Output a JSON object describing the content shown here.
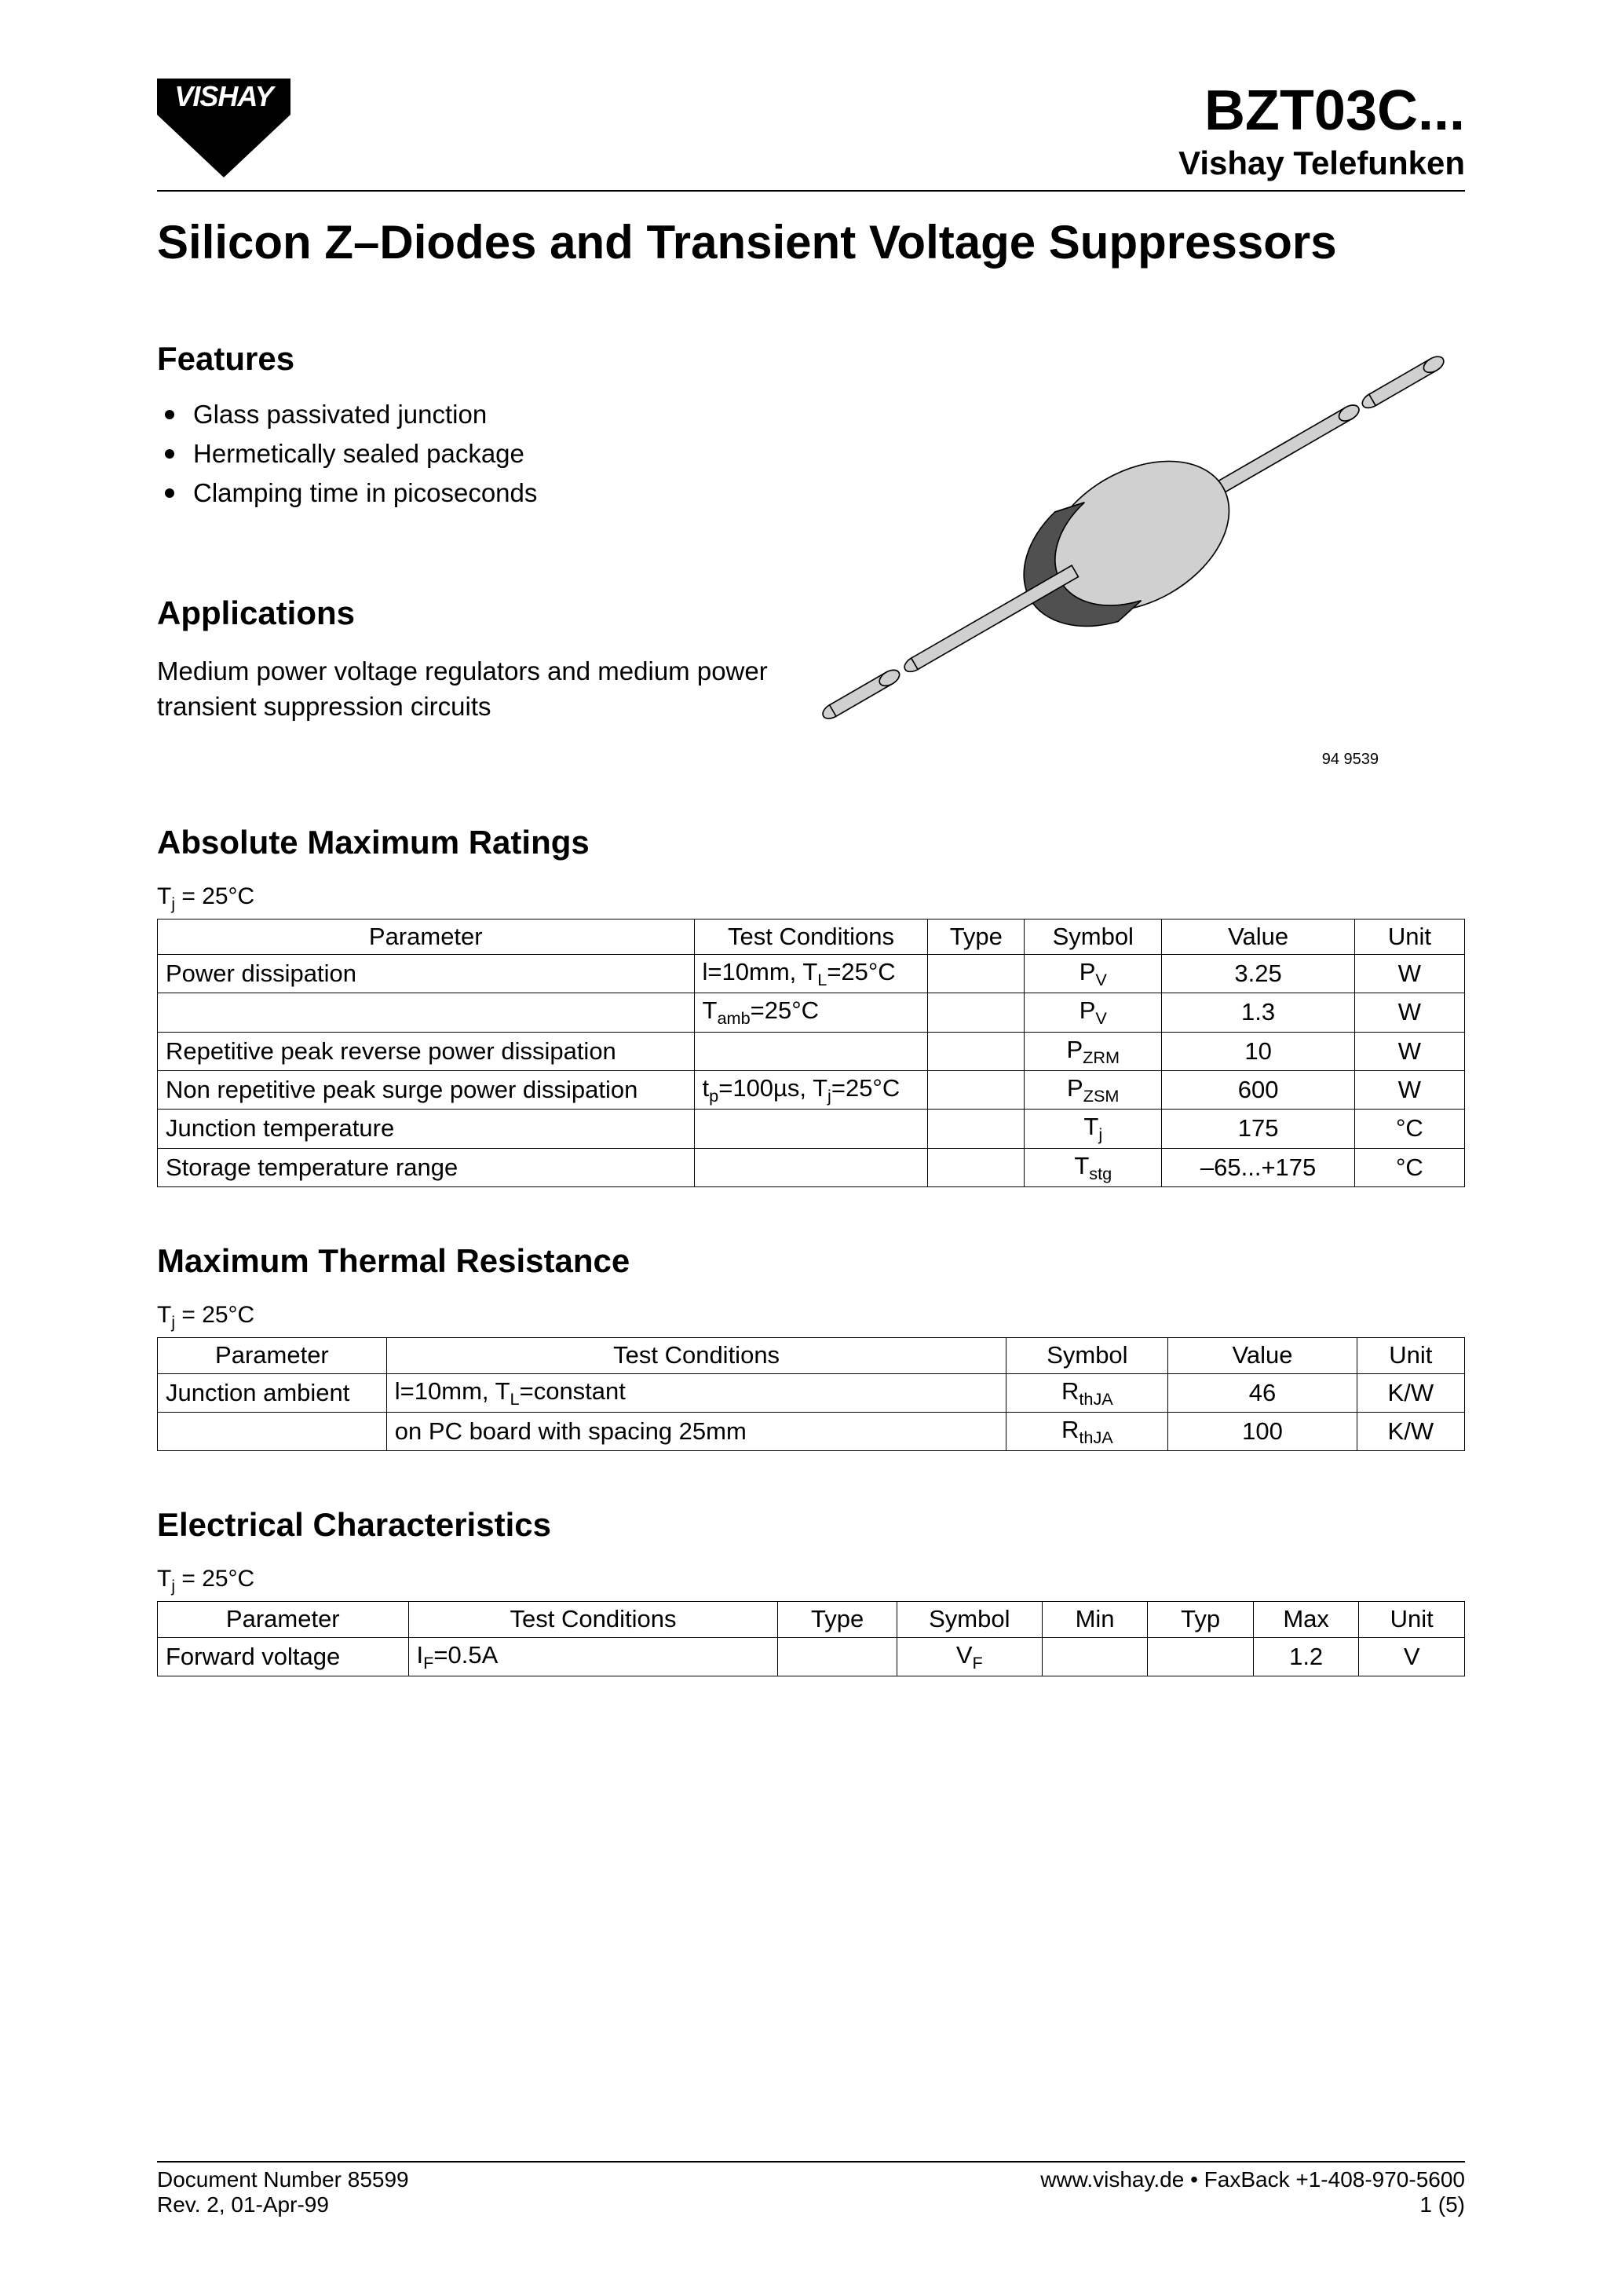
{
  "header": {
    "logo_text": "VISHAY",
    "part_number": "BZT03C...",
    "subtitle": "Vishay Telefunken"
  },
  "main_title": "Silicon Z–Diodes and Transient Voltage Suppressors",
  "features": {
    "heading": "Features",
    "items": [
      "Glass passivated junction",
      "Hermetically sealed package",
      "Clamping time in picoseconds"
    ]
  },
  "applications": {
    "heading": "Applications",
    "text": "Medium power voltage regulators and medium power transient suppression circuits"
  },
  "image_caption": "94 9539",
  "abs_max": {
    "heading": "Absolute Maximum Ratings",
    "condition": "Tj = 25°C",
    "columns": [
      "Parameter",
      "Test Conditions",
      "Type",
      "Symbol",
      "Value",
      "Unit"
    ],
    "col_widths": [
      "39%",
      "17%",
      "7%",
      "10%",
      "14%",
      "8%"
    ],
    "rows": [
      {
        "parameter": "Power dissipation",
        "test": "l=10mm, TL=25°C",
        "type": "",
        "symbol": "PV",
        "value": "3.25",
        "unit": "W"
      },
      {
        "parameter": "",
        "test": "Tamb=25°C",
        "type": "",
        "symbol": "PV",
        "value": "1.3",
        "unit": "W"
      },
      {
        "parameter": "Repetitive peak reverse power dissipation",
        "test": "",
        "type": "",
        "symbol": "PZRM",
        "value": "10",
        "unit": "W"
      },
      {
        "parameter": "Non repetitive peak surge power dissipation",
        "test": "tp=100µs, Tj=25°C",
        "type": "",
        "symbol": "PZSM",
        "value": "600",
        "unit": "W"
      },
      {
        "parameter": "Junction temperature",
        "test": "",
        "type": "",
        "symbol": "Tj",
        "value": "175",
        "unit": "°C"
      },
      {
        "parameter": "Storage temperature range",
        "test": "",
        "type": "",
        "symbol": "Tstg",
        "value": "–65...+175",
        "unit": "°C"
      }
    ]
  },
  "thermal": {
    "heading": "Maximum Thermal Resistance",
    "condition": "Tj = 25°C",
    "columns": [
      "Parameter",
      "Test Conditions",
      "Symbol",
      "Value",
      "Unit"
    ],
    "col_widths": [
      "17%",
      "46%",
      "12%",
      "14%",
      "8%"
    ],
    "rows": [
      {
        "parameter": "Junction ambient",
        "test": "l=10mm, TL=constant",
        "symbol": "RthJA",
        "value": "46",
        "unit": "K/W"
      },
      {
        "parameter": "",
        "test": "on PC board with spacing 25mm",
        "symbol": "RthJA",
        "value": "100",
        "unit": "K/W"
      }
    ]
  },
  "electrical": {
    "heading": "Electrical Characteristics",
    "condition": "Tj = 25°C",
    "columns": [
      "Parameter",
      "Test Conditions",
      "Type",
      "Symbol",
      "Min",
      "Typ",
      "Max",
      "Unit"
    ],
    "col_widths": [
      "19%",
      "28%",
      "9%",
      "11%",
      "8%",
      "8%",
      "8%",
      "8%"
    ],
    "rows": [
      {
        "parameter": "Forward voltage",
        "test": "IF=0.5A",
        "type": "",
        "symbol": "VF",
        "min": "",
        "typ": "",
        "max": "1.2",
        "unit": "V"
      }
    ]
  },
  "footer": {
    "doc_number": "Document Number 85599",
    "revision": "Rev. 2, 01-Apr-99",
    "contact": "www.vishay.de • FaxBack +1-408-970-5600",
    "page": "1 (5)"
  },
  "diode_svg": {
    "body_fill": "#d0d0d0",
    "band_fill": "#505050",
    "stroke": "#000000",
    "stroke_width": 1.2
  }
}
